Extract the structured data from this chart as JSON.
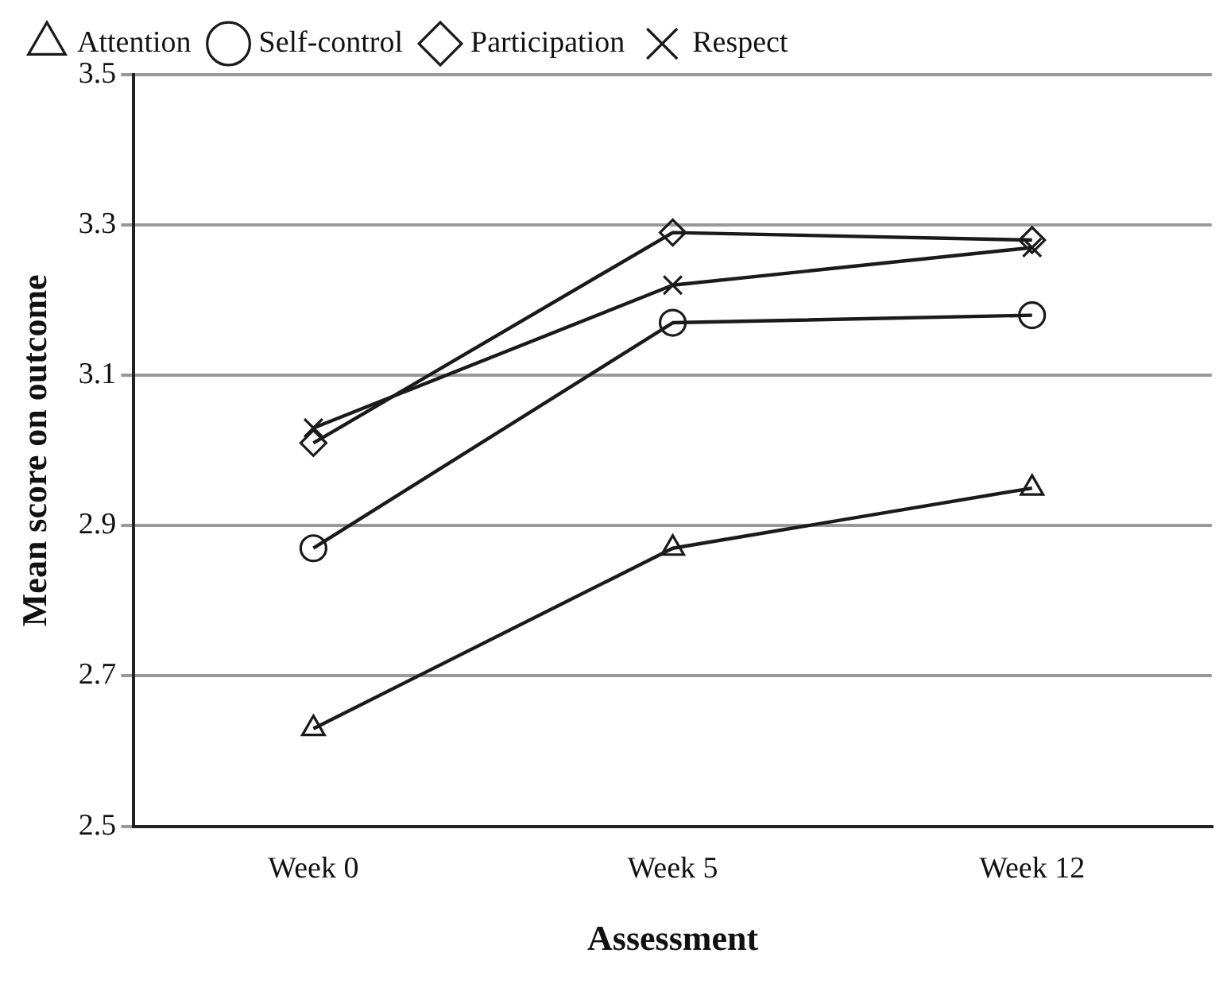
{
  "chart_data": {
    "type": "line",
    "xlabel": "Assessment",
    "ylabel": "Mean score on outcome",
    "categories": [
      "Week 0",
      "Week 5",
      "Week 12"
    ],
    "series": [
      {
        "name": "Attention",
        "color": "#1a1a1a",
        "marker": "triangle",
        "values": [
          2.63,
          2.87,
          2.95
        ]
      },
      {
        "name": "Self-control",
        "color": "#1a1a1a",
        "marker": "circle",
        "values": [
          2.87,
          3.17,
          3.18
        ]
      },
      {
        "name": "Participation",
        "color": "#1a1a1a",
        "marker": "diamond",
        "values": [
          3.01,
          3.29,
          3.28
        ]
      },
      {
        "name": "Respect",
        "color": "#1a1a1a",
        "marker": "cross",
        "values": [
          3.03,
          3.22,
          3.27
        ]
      }
    ],
    "ylim": [
      2.5,
      3.5
    ],
    "yticks": [
      2.5,
      2.7,
      2.9,
      3.1,
      3.3,
      3.5
    ],
    "grid": "y",
    "legend": "top left",
    "line_style": "solid"
  }
}
